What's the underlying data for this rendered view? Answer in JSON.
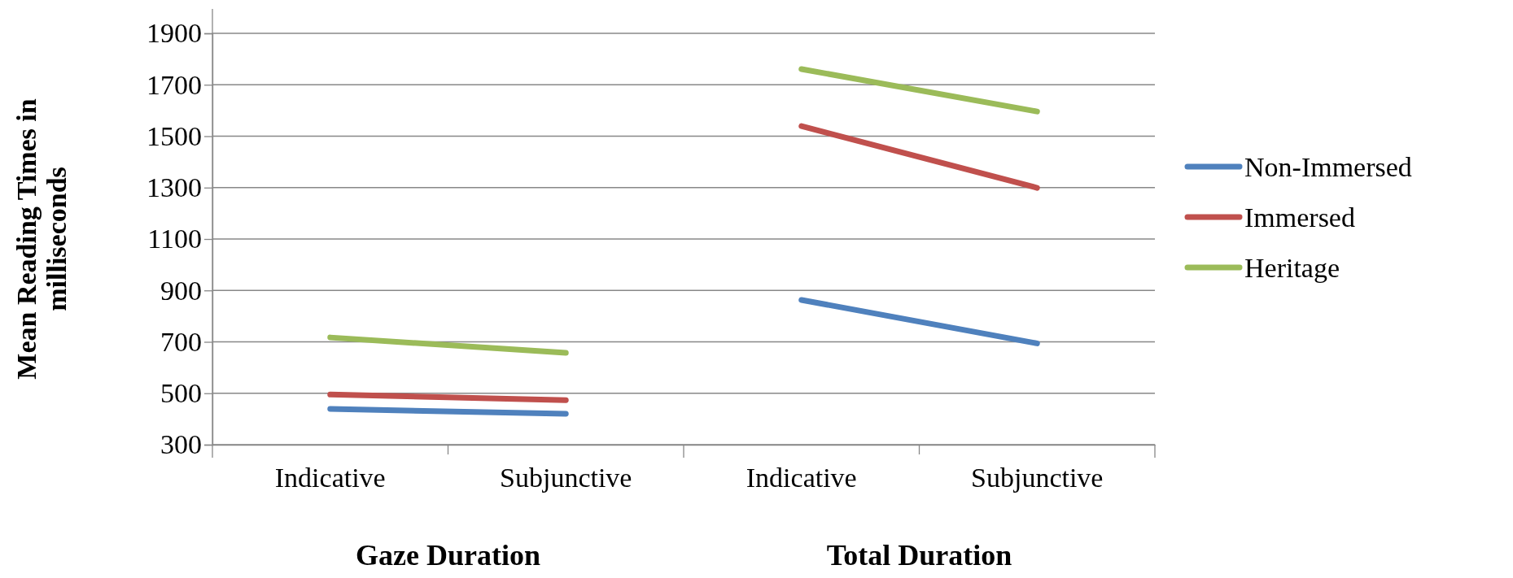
{
  "chart_data": [
    {
      "type": "line",
      "xlabel": "Gaze Duration",
      "ylabel": "Mean Reading Times in milliseconds",
      "categories": [
        "Indicative",
        "Subjunctive"
      ],
      "series": [
        {
          "color": "#4f81bd",
          "values": [
            439,
            420
          ]
        },
        {
          "color": "#c0504d",
          "values": [
            495,
            473
          ]
        },
        {
          "color": "#9bbb59",
          "values": [
            717,
            657
          ]
        }
      ],
      "ylim": [
        300,
        1900
      ],
      "yticks": [
        300,
        500,
        700,
        900,
        1100,
        1300,
        1500,
        1700,
        1900
      ],
      "grid": "y",
      "legend": false
    },
    {
      "type": "line",
      "xlabel": "Total Duration",
      "categories": [
        "Indicative",
        "Subjunctive"
      ],
      "series": [
        {
          "name": "Non-Immersed",
          "color": "#4f81bd",
          "values": [
            863,
            694
          ]
        },
        {
          "name": "Immersed",
          "color": "#c0504d",
          "values": [
            1539,
            1299
          ]
        },
        {
          "name": "Heritage",
          "color": "#9bbb59",
          "values": [
            1761,
            1596
          ]
        }
      ],
      "ylim": [
        300,
        1900
      ],
      "yticks": [
        300,
        500,
        700,
        900,
        1100,
        1300,
        1500,
        1700,
        1900
      ],
      "grid": "y",
      "legend": "right",
      "tick_labels": "x"
    }
  ]
}
